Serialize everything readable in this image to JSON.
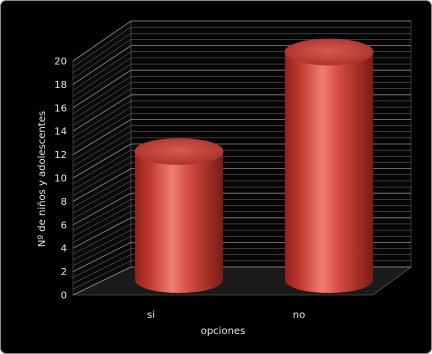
{
  "chart_data": {
    "type": "bar",
    "categories": [
      "si",
      "no"
    ],
    "values": [
      11.5,
      20.4
    ],
    "title": "",
    "xlabel": "opciones",
    "ylabel": "Nº de niños y adolescentes",
    "ylim": [
      0,
      20
    ],
    "yticks": [
      "0",
      "2",
      "4",
      "6",
      "8",
      "10",
      "12",
      "14",
      "16",
      "18",
      "20"
    ],
    "grid": true,
    "legend": "none",
    "colors": {
      "background": "#000000",
      "bar": "#c0392b",
      "bar_highlight": "#ef7f75",
      "bar_shadow": "#7a1a14",
      "bar_top": "#c94a40",
      "grid": "#6f6f6f",
      "text": "#e6e6e6"
    }
  }
}
